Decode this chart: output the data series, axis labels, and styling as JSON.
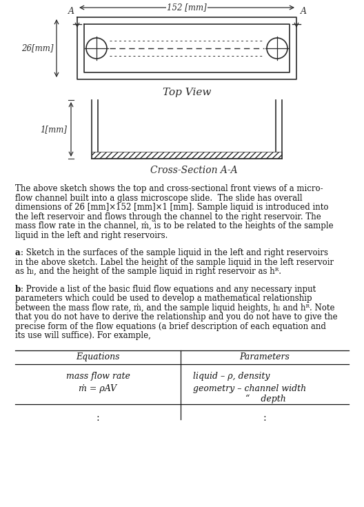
{
  "bg_color": "#ffffff",
  "color_draw": "#2a2a2a",
  "body_color": "#111111",
  "top_view_title": "Top View",
  "cross_section_title": "Cross-Section A-A",
  "dim_152": "152 [mm]",
  "dim_26": "26[mm]",
  "dim_1": "1[mm]",
  "label_A": "A",
  "p1_lines": [
    "The above sketch shows the top and cross-sectional front views of a micro-",
    "flow channel built into a glass microscope slide.  The slide has overall",
    "dimensions of 26 [mm]×152 [mm]×1 [mm]. Sample liquid is introduced into",
    "the left reservoir and flows through the channel to the right reservoir. The",
    "mass flow rate in the channel, ṁ, is to be related to the heights of the sample",
    "liquid in the left and right reservoirs."
  ],
  "pa_lines": [
    ": Sketch in the surfaces of the sample liquid in the left and right reservoirs",
    "in the above sketch. Label the height of the sample liquid in the left reservoir",
    "as hₗ, and the height of the sample liquid in right reservoir as hᴿ."
  ],
  "pb_lines": [
    ": Provide a list of the basic fluid flow equations and any necessary input",
    "parameters which could be used to develop a mathematical relationship",
    "between the mass flow rate, ṁ, and the sample liquid heights, hₗ and hᴿ. Note",
    "that you do not have to derive the relationship and you do not have to give the",
    "precise form of the flow equations (a brief description of each equation and",
    "its use will suffice). For example,"
  ],
  "table_eq_header": "Equations",
  "table_pa_header": "Parameters",
  "table_r1c1_l1": "mass flow rate",
  "table_r1c1_l2": "ṁ = ρAV",
  "table_r1c2_l1": "liquid – ρ, density",
  "table_r1c2_l2": "geometry – channel width",
  "table_r1c2_l3": "       “    depth"
}
